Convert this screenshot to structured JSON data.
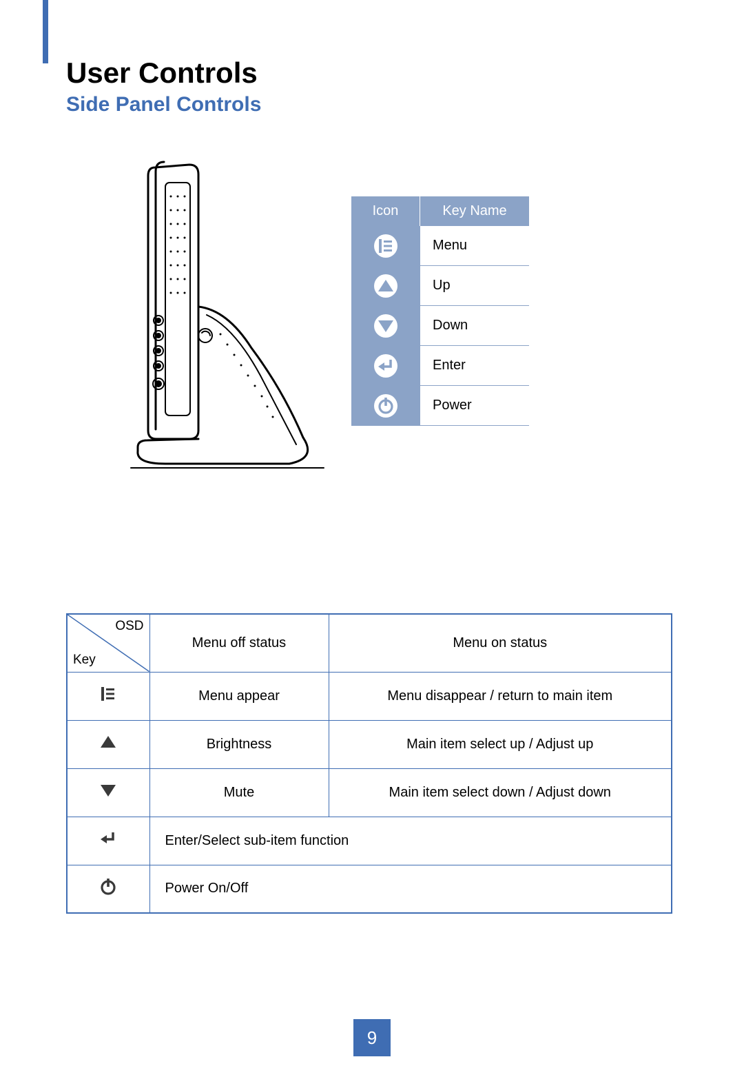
{
  "colors": {
    "accent": "#3f6db3",
    "panel_blue": "#8ba3c7",
    "white": "#ffffff",
    "text": "#000000",
    "icon_dark": "#3a3a3a"
  },
  "typography": {
    "heading_fontsize": 42,
    "subheading_fontsize": 30,
    "body_fontsize": 20,
    "pagenum_fontsize": 26,
    "font_family": "Arial"
  },
  "heading": "User Controls",
  "subheading": "Side Panel Controls",
  "icon_table": {
    "header": {
      "col1": "Icon",
      "col2": "Key Name"
    },
    "rows": [
      {
        "icon": "menu",
        "label": "Menu"
      },
      {
        "icon": "up",
        "label": "Up"
      },
      {
        "icon": "down",
        "label": "Down"
      },
      {
        "icon": "enter",
        "label": "Enter"
      },
      {
        "icon": "power",
        "label": "Power"
      }
    ]
  },
  "osd_table": {
    "corner": {
      "top_right": "OSD",
      "bottom_left": "Key"
    },
    "columns": [
      "Menu off status",
      "Menu on status"
    ],
    "rows": [
      {
        "icon": "menu",
        "off": "Menu appear",
        "on": "Menu disappear / return to main item"
      },
      {
        "icon": "up",
        "off": "Brightness",
        "on": "Main item select up / Adjust up"
      },
      {
        "icon": "down",
        "off": "Mute",
        "on": "Main item select down / Adjust down"
      },
      {
        "icon": "enter",
        "merged": "Enter/Select sub-item function"
      },
      {
        "icon": "power",
        "merged": "Power On/Off"
      }
    ]
  },
  "page_number": "9"
}
